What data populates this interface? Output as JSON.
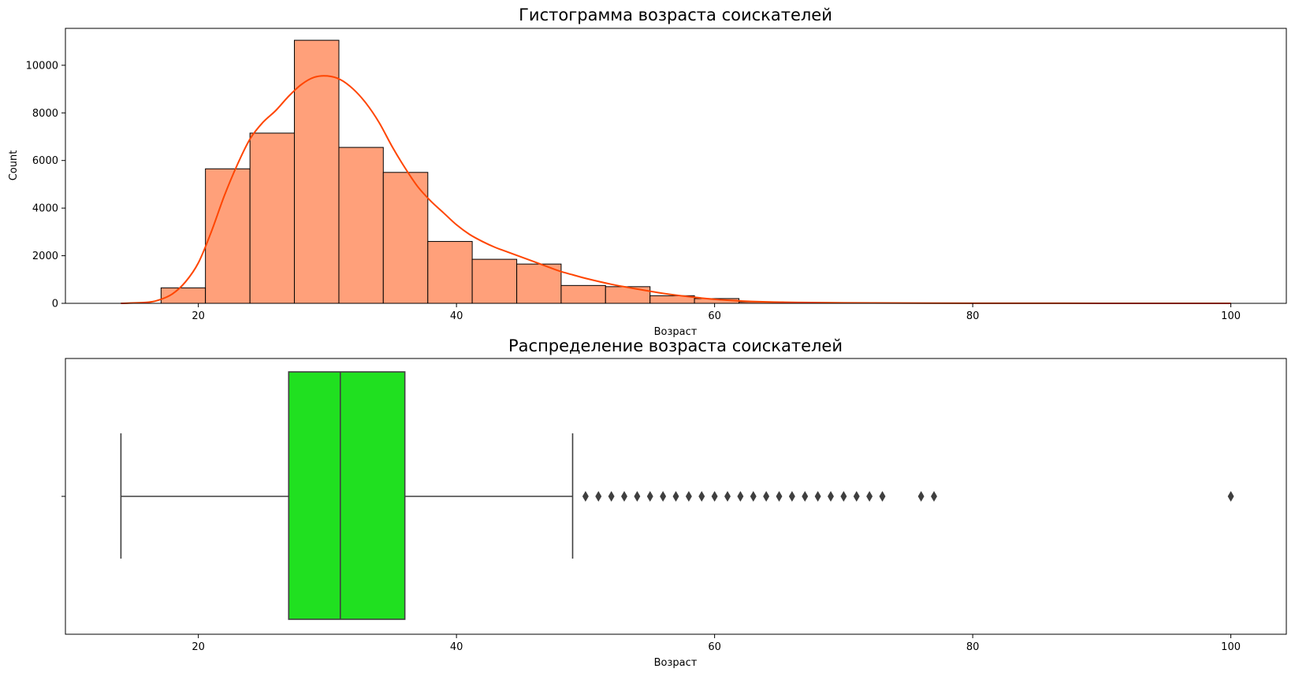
{
  "chart_data": [
    {
      "type": "bar",
      "subtype": "histogram_with_kde",
      "title": "Гистограмма возраста соискателей",
      "xlabel": "Возраст",
      "ylabel": "Count",
      "xlim": [
        9.7,
        104.3
      ],
      "ylim": [
        0,
        11550
      ],
      "xticks": [
        20,
        40,
        60,
        80,
        100
      ],
      "yticks": [
        0,
        2000,
        4000,
        6000,
        8000,
        10000
      ],
      "grid": false,
      "bar_color": "#ffa07a",
      "edge_color": "#000000",
      "kde_color": "#ff4500",
      "bins": [
        {
          "x0": 17.11,
          "x1": 20.55,
          "count": 650
        },
        {
          "x0": 20.55,
          "x1": 24.0,
          "count": 5650
        },
        {
          "x0": 24.0,
          "x1": 27.44,
          "count": 7150
        },
        {
          "x0": 27.44,
          "x1": 30.89,
          "count": 11050
        },
        {
          "x0": 30.89,
          "x1": 34.33,
          "count": 6550
        },
        {
          "x0": 34.33,
          "x1": 37.78,
          "count": 5500
        },
        {
          "x0": 37.78,
          "x1": 41.22,
          "count": 2600
        },
        {
          "x0": 41.22,
          "x1": 44.67,
          "count": 1850
        },
        {
          "x0": 44.67,
          "x1": 48.11,
          "count": 1650
        },
        {
          "x0": 48.11,
          "x1": 51.55,
          "count": 750
        },
        {
          "x0": 51.55,
          "x1": 55.0,
          "count": 700
        },
        {
          "x0": 55.0,
          "x1": 58.44,
          "count": 320
        },
        {
          "x0": 58.44,
          "x1": 61.89,
          "count": 200
        },
        {
          "x0": 61.89,
          "x1": 65.33,
          "count": 60
        },
        {
          "x0": 65.33,
          "x1": 68.78,
          "count": 20
        },
        {
          "x0": 68.78,
          "x1": 72.22,
          "count": 10
        },
        {
          "x0": 72.22,
          "x1": 75.67,
          "count": 5
        },
        {
          "x0": 75.67,
          "x1": 79.11,
          "count": 3
        },
        {
          "x0": 79.11,
          "x1": 82.56,
          "count": 0
        },
        {
          "x0": 82.56,
          "x1": 86.0,
          "count": 0
        },
        {
          "x0": 86.0,
          "x1": 89.44,
          "count": 0
        },
        {
          "x0": 89.44,
          "x1": 92.89,
          "count": 0
        },
        {
          "x0": 92.89,
          "x1": 96.33,
          "count": 0
        },
        {
          "x0": 96.33,
          "x1": 100.0,
          "count": 1
        }
      ],
      "kde": {
        "x": [
          14,
          16,
          17,
          18,
          19,
          20,
          21,
          22,
          23,
          24,
          25,
          26,
          27,
          28,
          29,
          30,
          31,
          32,
          33,
          34,
          35,
          36,
          37,
          38,
          39,
          40,
          41,
          42,
          43,
          44,
          45,
          46,
          47,
          48,
          49,
          50,
          52,
          54,
          56,
          58,
          60,
          62,
          64,
          66,
          70,
          80,
          90,
          100
        ],
        "y": [
          0,
          40,
          150,
          400,
          900,
          1700,
          3000,
          4500,
          5800,
          6900,
          7600,
          8100,
          8700,
          9200,
          9500,
          9550,
          9400,
          9000,
          8400,
          7600,
          6600,
          5700,
          4900,
          4300,
          3800,
          3300,
          2900,
          2600,
          2350,
          2150,
          1950,
          1750,
          1550,
          1350,
          1200,
          1050,
          800,
          600,
          420,
          280,
          170,
          100,
          60,
          40,
          20,
          5,
          2,
          0
        ]
      }
    },
    {
      "type": "box",
      "title": "Распределение возраста соискателей",
      "xlabel": "Возраст",
      "xlim": [
        9.7,
        104.3
      ],
      "xticks": [
        20,
        40,
        60,
        80,
        100
      ],
      "grid": false,
      "box_color": "#20e020",
      "line_color": "#3f3f3f",
      "whisker_low": 14,
      "q1": 27,
      "median": 31,
      "q3": 36,
      "whisker_high": 49,
      "outliers": [
        50,
        51,
        52,
        53,
        54,
        55,
        56,
        57,
        58,
        59,
        60,
        61,
        62,
        63,
        64,
        65,
        66,
        67,
        68,
        69,
        70,
        71,
        72,
        73,
        76,
        77,
        100
      ]
    }
  ]
}
